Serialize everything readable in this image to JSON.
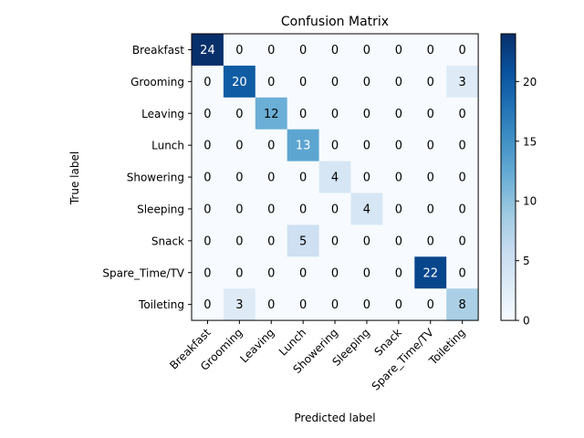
{
  "chart_data": {
    "type": "heatmap",
    "title": "Confusion Matrix",
    "xlabel": "Predicted label",
    "ylabel": "True label",
    "x_categories": [
      "Breakfast",
      "Grooming",
      "Leaving",
      "Lunch",
      "Showering",
      "Sleeping",
      "Snack",
      "Spare_Time/TV",
      "Toileting"
    ],
    "y_categories": [
      "Breakfast",
      "Grooming",
      "Leaving",
      "Lunch",
      "Showering",
      "Sleeping",
      "Snack",
      "Spare_Time/TV",
      "Toileting"
    ],
    "values": [
      [
        24,
        0,
        0,
        0,
        0,
        0,
        0,
        0,
        0
      ],
      [
        0,
        20,
        0,
        0,
        0,
        0,
        0,
        0,
        3
      ],
      [
        0,
        0,
        12,
        0,
        0,
        0,
        0,
        0,
        0
      ],
      [
        0,
        0,
        0,
        13,
        0,
        0,
        0,
        0,
        0
      ],
      [
        0,
        0,
        0,
        0,
        4,
        0,
        0,
        0,
        0
      ],
      [
        0,
        0,
        0,
        0,
        0,
        4,
        0,
        0,
        0
      ],
      [
        0,
        0,
        0,
        5,
        0,
        0,
        0,
        0,
        0
      ],
      [
        0,
        0,
        0,
        0,
        0,
        0,
        0,
        22,
        0
      ],
      [
        0,
        3,
        0,
        0,
        0,
        0,
        0,
        0,
        8
      ]
    ],
    "colormap": "Blues",
    "vmin": 0,
    "vmax": 24,
    "colorbar_ticks": [
      0,
      5,
      10,
      15,
      20
    ],
    "grid": false
  }
}
